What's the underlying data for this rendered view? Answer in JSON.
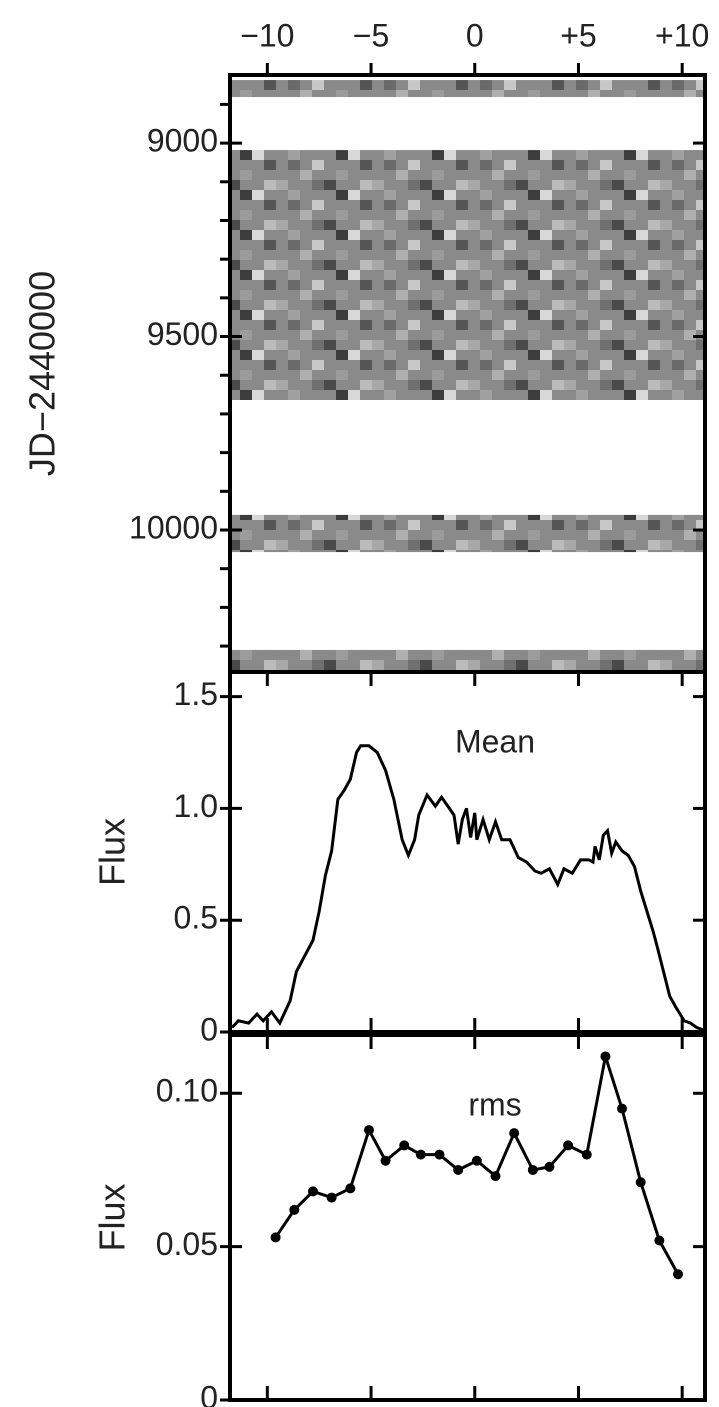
{
  "chart_data": [
    {
      "type": "image",
      "ylabel": "JD−2440000",
      "xlim": [
        -11.8,
        11.1
      ],
      "xticks": [
        {
          "value": -10,
          "label": "−10"
        },
        {
          "value": -5,
          "label": "−5"
        },
        0,
        {
          "value": 5,
          "label": "+5"
        },
        {
          "value": 10,
          "label": "+10"
        }
      ],
      "ylim": [
        8824,
        10367
      ],
      "yinvert": true,
      "yticks": [
        9000,
        9500,
        10000
      ],
      "yminorticks": [
        8900,
        9100,
        9200,
        9300,
        9400,
        9600,
        9700,
        9800,
        9900,
        10100,
        10200,
        10300
      ],
      "bands": [
        [
          8837,
          8881
        ],
        [
          9018,
          9664
        ],
        [
          9961,
          10057
        ],
        [
          10310,
          10367
        ]
      ]
    },
    {
      "type": "line",
      "ylabel": "Flux",
      "annotation": "Mean",
      "color": "#000000",
      "xlim": [
        -11.8,
        11.1
      ],
      "ylim": [
        0,
        1.61
      ],
      "yticks": [
        0,
        0.5,
        {
          "value": 1,
          "label": "1.0"
        },
        1.5
      ],
      "x": [
        -11.7,
        -11.4,
        -10.9,
        -10.5,
        -10.2,
        -9.8,
        -9.4,
        -8.9,
        -8.6,
        -8.2,
        -7.8,
        -7.5,
        -7.2,
        -6.9,
        -6.6,
        -6.3,
        -6.0,
        -5.7,
        -5.5,
        -5.1,
        -4.7,
        -4.3,
        -3.9,
        -3.5,
        -3.2,
        -2.9,
        -2.7,
        -2.3,
        -1.9,
        -1.6,
        -1.3,
        -1.0,
        -0.8,
        -0.6,
        -0.4,
        -0.2,
        0.0,
        0.1,
        0.4,
        0.7,
        1.0,
        1.3,
        1.7,
        2.1,
        2.5,
        2.9,
        3.2,
        3.6,
        4.0,
        4.3,
        4.7,
        5.1,
        5.5,
        5.7,
        5.8,
        6.0,
        6.2,
        6.4,
        6.6,
        6.8,
        7.1,
        7.4,
        7.7,
        8.0,
        8.3,
        8.6,
        8.8,
        9.1,
        9.4,
        9.7,
        10.1,
        10.4,
        10.7,
        11.0
      ],
      "values": [
        0.02,
        0.05,
        0.04,
        0.08,
        0.05,
        0.09,
        0.04,
        0.14,
        0.27,
        0.34,
        0.41,
        0.54,
        0.7,
        0.81,
        1.04,
        1.08,
        1.13,
        1.25,
        1.28,
        1.28,
        1.25,
        1.17,
        1.04,
        0.86,
        0.79,
        0.86,
        0.97,
        1.06,
        1.01,
        1.05,
        1.01,
        0.97,
        0.84,
        0.95,
        1.0,
        0.87,
        0.98,
        0.86,
        0.95,
        0.86,
        0.94,
        0.86,
        0.86,
        0.78,
        0.76,
        0.72,
        0.71,
        0.73,
        0.66,
        0.73,
        0.71,
        0.77,
        0.77,
        0.76,
        0.83,
        0.77,
        0.88,
        0.9,
        0.8,
        0.85,
        0.81,
        0.79,
        0.74,
        0.63,
        0.54,
        0.45,
        0.38,
        0.27,
        0.16,
        0.11,
        0.05,
        0.04,
        0.02,
        0.01
      ]
    },
    {
      "type": "line",
      "ylabel": "Flux",
      "annotation": "rms",
      "color": "#000000",
      "markers": true,
      "xlim": [
        -11.8,
        11.1
      ],
      "ylim": [
        0,
        0.119
      ],
      "yticks": [
        0,
        0.05,
        {
          "value": 0.1,
          "label": "0.10"
        }
      ],
      "x": [
        -9.6,
        -8.7,
        -7.8,
        -6.9,
        -6.0,
        -5.1,
        -4.3,
        -3.4,
        -2.6,
        -1.7,
        -0.8,
        0.1,
        1.0,
        1.9,
        2.8,
        3.6,
        4.5,
        5.4,
        6.3,
        7.1,
        8.0,
        8.9,
        9.8
      ],
      "values": [
        0.053,
        0.062,
        0.068,
        0.066,
        0.069,
        0.088,
        0.078,
        0.083,
        0.08,
        0.08,
        0.075,
        0.078,
        0.073,
        0.087,
        0.075,
        0.076,
        0.083,
        0.08,
        0.112,
        0.095,
        0.071,
        0.052,
        0.041
      ]
    }
  ]
}
